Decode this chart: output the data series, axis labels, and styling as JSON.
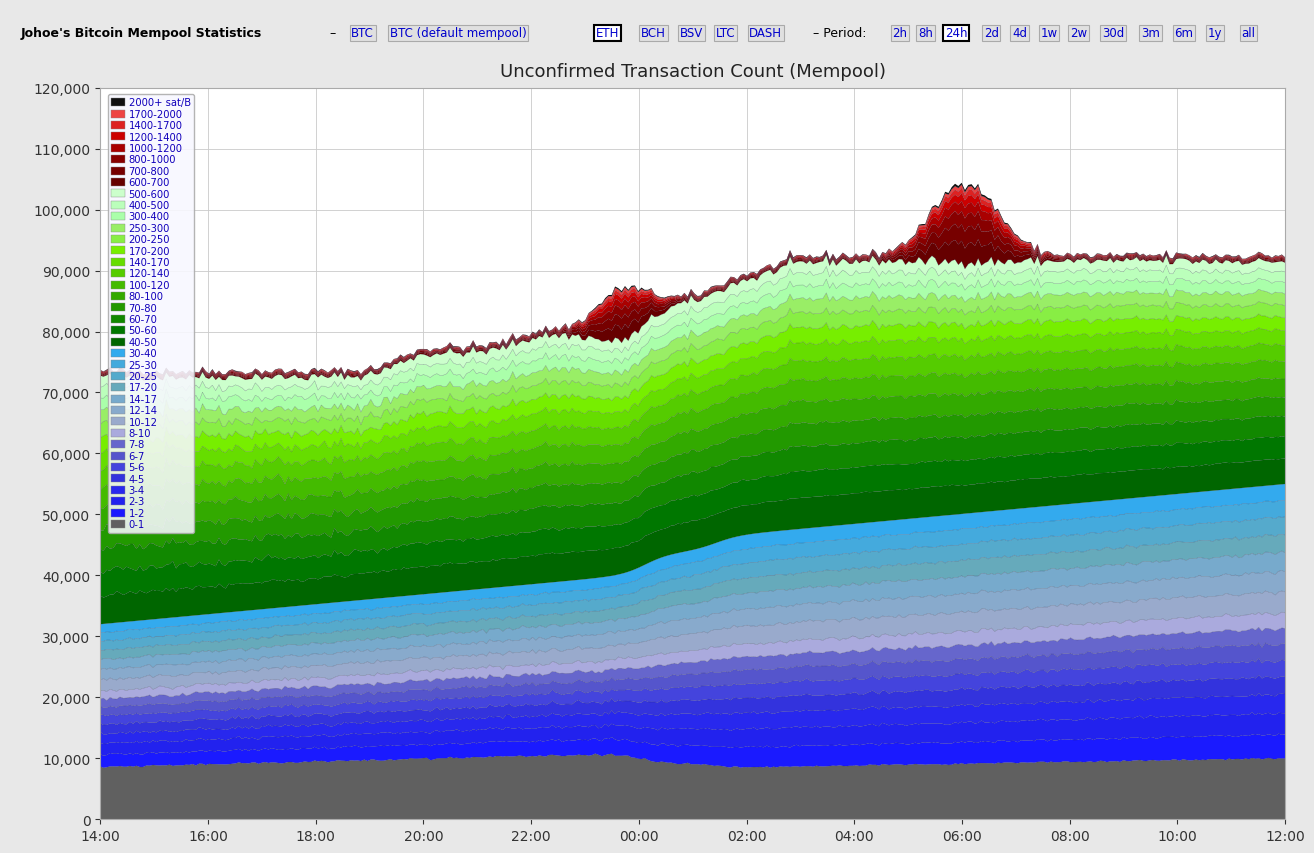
{
  "title": "Unconfirmed Transaction Count (Mempool)",
  "x_labels": [
    "14:00",
    "16:00",
    "18:00",
    "20:00",
    "22:00",
    "00:00",
    "02:00",
    "04:00",
    "06:00",
    "08:00",
    "10:00",
    "12:00"
  ],
  "ylim": [
    0,
    120000
  ],
  "yticks": [
    0,
    10000,
    20000,
    30000,
    40000,
    50000,
    60000,
    70000,
    80000,
    90000,
    100000,
    110000,
    120000
  ],
  "n_points": 360,
  "fee_bands": [
    {
      "label": "0-1",
      "color": "#606060"
    },
    {
      "label": "1-2",
      "color": "#1a1aff"
    },
    {
      "label": "2-3",
      "color": "#2222ee"
    },
    {
      "label": "3-4",
      "color": "#2828ee"
    },
    {
      "label": "4-5",
      "color": "#3333dd"
    },
    {
      "label": "5-6",
      "color": "#4444dd"
    },
    {
      "label": "6-7",
      "color": "#5555cc"
    },
    {
      "label": "7-8",
      "color": "#6666cc"
    },
    {
      "label": "8-10",
      "color": "#aaaadd"
    },
    {
      "label": "10-12",
      "color": "#99aacc"
    },
    {
      "label": "12-14",
      "color": "#88aacc"
    },
    {
      "label": "14-17",
      "color": "#77aacc"
    },
    {
      "label": "17-20",
      "color": "#66aabb"
    },
    {
      "label": "20-25",
      "color": "#55aacc"
    },
    {
      "label": "25-30",
      "color": "#44aadd"
    },
    {
      "label": "30-40",
      "color": "#33aaee"
    },
    {
      "label": "40-50",
      "color": "#006600"
    },
    {
      "label": "50-60",
      "color": "#007700"
    },
    {
      "label": "60-70",
      "color": "#118800"
    },
    {
      "label": "70-80",
      "color": "#229900"
    },
    {
      "label": "80-100",
      "color": "#33aa00"
    },
    {
      "label": "100-120",
      "color": "#44bb00"
    },
    {
      "label": "120-140",
      "color": "#55cc00"
    },
    {
      "label": "140-170",
      "color": "#66dd00"
    },
    {
      "label": "170-200",
      "color": "#77ee00"
    },
    {
      "label": "200-250",
      "color": "#88ee44"
    },
    {
      "label": "250-300",
      "color": "#99ee66"
    },
    {
      "label": "300-400",
      "color": "#aaffaa"
    },
    {
      "label": "400-500",
      "color": "#bbffbb"
    },
    {
      "label": "500-600",
      "color": "#ccffcc"
    },
    {
      "label": "600-700",
      "color": "#660000"
    },
    {
      "label": "700-800",
      "color": "#770000"
    },
    {
      "label": "800-1000",
      "color": "#880000"
    },
    {
      "label": "1000-1200",
      "color": "#aa0000"
    },
    {
      "label": "1200-1400",
      "color": "#cc0000"
    },
    {
      "label": "1400-1700",
      "color": "#dd2222"
    },
    {
      "label": "1700-2000",
      "color": "#ee4444"
    },
    {
      "label": "2000+ sat/B",
      "color": "#111111"
    }
  ],
  "background_color": "#e8e8e8",
  "plot_bg_color": "#ffffff",
  "grid_color": "#cccccc"
}
